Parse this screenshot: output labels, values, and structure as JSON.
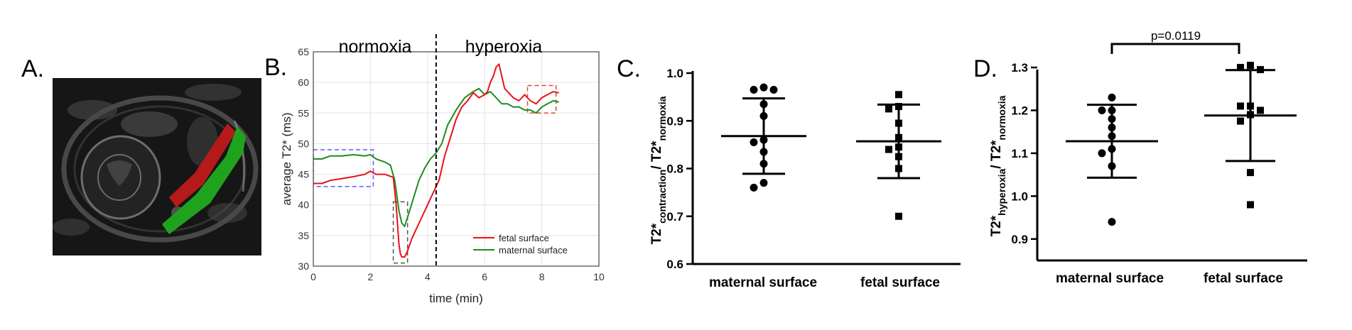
{
  "panels": {
    "a": {
      "label": "A."
    },
    "b": {
      "label": "B."
    },
    "c": {
      "label": "C."
    },
    "d": {
      "label": "D."
    }
  },
  "chart_data": [
    {
      "panel": "B",
      "type": "line",
      "xlabel": "time (min)",
      "ylabel": "average T2* (ms)",
      "xlim": [
        0,
        10
      ],
      "ylim": [
        30,
        65
      ],
      "xticks": [
        0,
        2,
        4,
        6,
        8,
        10
      ],
      "yticks": [
        30,
        35,
        40,
        45,
        50,
        55,
        60,
        65
      ],
      "grid": true,
      "legend_position": "bottom-right",
      "phase_labels": {
        "normoxia": "normoxia",
        "hyperoxia": "hyperoxia"
      },
      "event_line_x": 4.3,
      "series": [
        {
          "name": "fetal surface",
          "color": "#e8121b",
          "x": [
            0,
            0.3,
            0.6,
            1.0,
            1.4,
            1.8,
            2.0,
            2.2,
            2.5,
            2.8,
            2.9,
            3.0,
            3.05,
            3.1,
            3.2,
            3.3,
            3.45,
            3.6,
            3.8,
            4.0,
            4.2,
            4.4,
            4.6,
            4.8,
            5.0,
            5.2,
            5.4,
            5.6,
            5.8,
            6.0,
            6.1,
            6.2,
            6.3,
            6.4,
            6.5,
            6.6,
            6.7,
            6.8,
            7.0,
            7.2,
            7.4,
            7.6,
            7.8,
            8.0,
            8.2,
            8.4,
            8.6
          ],
          "values": [
            43.5,
            43.5,
            44,
            44.3,
            44.6,
            45,
            45.5,
            45,
            45,
            44.5,
            40,
            33.5,
            32,
            31.5,
            31.5,
            32.5,
            34.5,
            36,
            38,
            40,
            42,
            44,
            48,
            51,
            54,
            56,
            57,
            58.3,
            57.5,
            58,
            58.5,
            60,
            61,
            62.5,
            63,
            61,
            59,
            58.5,
            57.5,
            57,
            58,
            57,
            56.5,
            57.5,
            58,
            58.5,
            58.3
          ]
        },
        {
          "name": "maternal surface",
          "color": "#1f8c1f",
          "x": [
            0,
            0.3,
            0.6,
            1.0,
            1.4,
            1.8,
            2.0,
            2.2,
            2.5,
            2.7,
            2.85,
            3.0,
            3.1,
            3.2,
            3.3,
            3.5,
            3.7,
            3.9,
            4.1,
            4.3,
            4.5,
            4.7,
            5.0,
            5.3,
            5.6,
            5.8,
            6.0,
            6.2,
            6.4,
            6.6,
            6.8,
            7.0,
            7.2,
            7.4,
            7.6,
            7.8,
            8.0,
            8.2,
            8.4,
            8.6
          ],
          "values": [
            47.5,
            47.5,
            48,
            48,
            48.2,
            48,
            48.2,
            47.5,
            47,
            46.5,
            44,
            39,
            37,
            36.5,
            38,
            41,
            44,
            46,
            47.5,
            48.5,
            50,
            53,
            55.5,
            57.5,
            58.5,
            59,
            58,
            58.5,
            57.5,
            56.5,
            56.5,
            56,
            56,
            55.5,
            55.5,
            55,
            56,
            56.5,
            57,
            56.8
          ]
        }
      ],
      "highlight_boxes": [
        {
          "color": "#5b5bff",
          "x_range": [
            0,
            2.1
          ],
          "y_range": [
            43,
            49
          ]
        },
        {
          "color": "#555555",
          "x_range": [
            2.8,
            3.3
          ],
          "y_range": [
            30.5,
            40.5
          ]
        },
        {
          "color": "#d9482b",
          "x_range": [
            7.5,
            8.5
          ],
          "y_range": [
            55,
            59.5
          ]
        }
      ]
    },
    {
      "panel": "C",
      "type": "scatter",
      "ylabel_main": "T2*",
      "ylabel_sub1": "contraction",
      "ylabel_sep": "/ T2*",
      "ylabel_sub2": "normoxia",
      "ylim": [
        0.6,
        1.0
      ],
      "yticks": [
        "0.6",
        "0.7",
        "0.8",
        "0.9",
        "1.0"
      ],
      "categories": [
        "maternal surface",
        "fetal surface"
      ],
      "series": [
        {
          "name": "maternal surface",
          "marker": "circle",
          "values": [
            0.97,
            0.965,
            0.965,
            0.935,
            0.91,
            0.86,
            0.855,
            0.835,
            0.81,
            0.77,
            0.76
          ],
          "mean": 0.868,
          "sd": 0.079
        },
        {
          "name": "fetal surface",
          "marker": "square",
          "values": [
            0.955,
            0.93,
            0.925,
            0.895,
            0.865,
            0.845,
            0.84,
            0.825,
            0.8,
            0.7
          ],
          "mean": 0.857,
          "sd": 0.077
        }
      ]
    },
    {
      "panel": "D",
      "type": "scatter",
      "ylabel_main": "T2*",
      "ylabel_sub1": "hyperoxia",
      "ylabel_sep": "/ T2*",
      "ylabel_sub2": "normoxia",
      "ylim": [
        0.85,
        1.32
      ],
      "yticks": [
        "0.9",
        "1.0",
        "1.1",
        "1.2",
        "1.3"
      ],
      "categories": [
        "maternal surface",
        "fetal surface"
      ],
      "significance": "p=0.0119",
      "series": [
        {
          "name": "maternal surface",
          "marker": "circle",
          "values": [
            1.23,
            1.2,
            1.2,
            1.18,
            1.16,
            1.14,
            1.11,
            1.1,
            1.07,
            0.94
          ],
          "mean": 1.128,
          "sd": 0.085
        },
        {
          "name": "fetal surface",
          "marker": "square",
          "values": [
            1.305,
            1.3,
            1.295,
            1.21,
            1.21,
            1.2,
            1.19,
            1.175,
            1.055,
            0.98
          ],
          "mean": 1.188,
          "sd": 0.106
        }
      ]
    }
  ]
}
